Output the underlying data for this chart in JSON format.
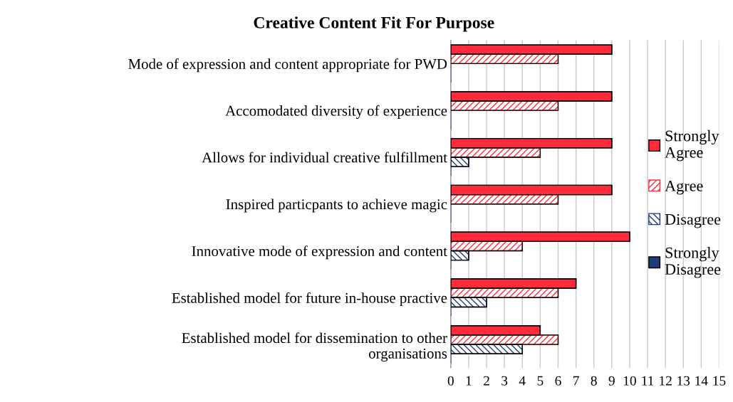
{
  "chart_data": {
    "type": "bar",
    "orientation": "horizontal",
    "title": "Creative Content Fit For Purpose",
    "categories": [
      "Mode of expression and content appropriate for PWD",
      "Accomodated diversity of experience",
      "Allows for individual creative fulfillment",
      "Inspired particpants to achieve magic",
      "Innovative mode of expression and content",
      "Established model for future in-house practive",
      "Established model for dissemination to other\norganisations"
    ],
    "series": [
      {
        "name": "Strongly Agree",
        "color": "#ff2a3a",
        "values": [
          9,
          9,
          9,
          9,
          10,
          7,
          5
        ]
      },
      {
        "name": "Agree",
        "color": "#ff2a3a",
        "values": [
          6,
          6,
          5,
          6,
          4,
          6,
          6
        ]
      },
      {
        "name": "Disagree",
        "color": "#1f3d7a",
        "values": [
          0,
          0,
          1,
          0,
          1,
          2,
          4
        ]
      },
      {
        "name": "Strongly Disagree",
        "color": "#1f3d7a",
        "values": [
          0,
          0,
          0,
          0,
          0,
          0,
          0
        ]
      }
    ],
    "xlim": [
      0,
      15
    ],
    "xticks": [
      0,
      1,
      2,
      3,
      4,
      5,
      6,
      7,
      8,
      9,
      10,
      11,
      12,
      13,
      14,
      15
    ],
    "grid": "x",
    "legend": "right"
  }
}
